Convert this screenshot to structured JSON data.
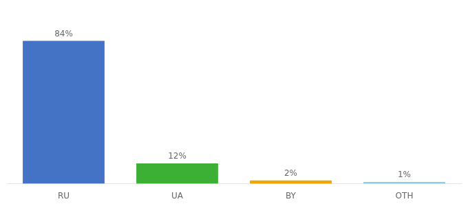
{
  "chart_data": {
    "type": "bar",
    "categories": [
      "RU",
      "UA",
      "BY",
      "OTH"
    ],
    "values": [
      84,
      12,
      2,
      1
    ],
    "value_labels": [
      "84%",
      "12%",
      "2%",
      "1%"
    ],
    "colors": [
      "#4472c4",
      "#3cb034",
      "#f0a500",
      "#87ceeb"
    ],
    "ylim": [
      0,
      100
    ],
    "grid": false,
    "data_labels": true,
    "tick_labels": "x"
  }
}
